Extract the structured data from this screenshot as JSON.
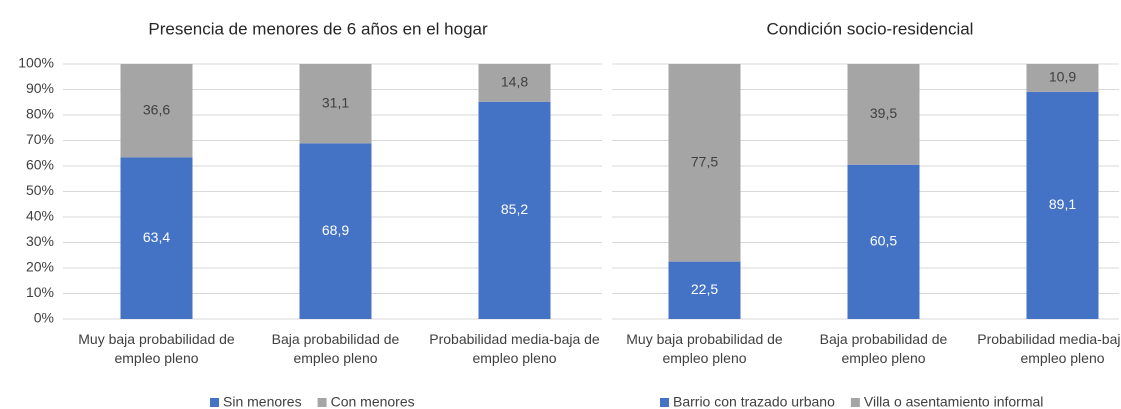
{
  "chart_data": [
    {
      "type": "stacked_bar",
      "title": "Presencia de menores de 6 años en el hogar",
      "categories": [
        "Muy baja probabilidad de empleo pleno",
        "Baja probabilidad de empleo pleno",
        "Probabilidad media-baja de empleo pleno"
      ],
      "series": [
        {
          "name": "Sin menores",
          "color": "#4472c4",
          "values": [
            63.4,
            68.9,
            85.2
          ],
          "value_labels": [
            "63,4",
            "68,9",
            "85,2"
          ]
        },
        {
          "name": "Con menores",
          "color": "#a5a5a5",
          "values": [
            36.6,
            31.1,
            14.8
          ],
          "value_labels": [
            "36,6",
            "31,1",
            "14,8"
          ]
        }
      ],
      "ylim": [
        0,
        100
      ],
      "yticks": [
        {
          "value": 0,
          "label": "0%"
        },
        {
          "value": 10,
          "label": "10%"
        },
        {
          "value": 20,
          "label": "20%"
        },
        {
          "value": 30,
          "label": "30%"
        },
        {
          "value": 40,
          "label": "40%"
        },
        {
          "value": 50,
          "label": "50%"
        },
        {
          "value": 60,
          "label": "60%"
        },
        {
          "value": 70,
          "label": "70%"
        },
        {
          "value": 80,
          "label": "80%"
        },
        {
          "value": 90,
          "label": "90%"
        },
        {
          "value": 100,
          "label": "100%"
        }
      ],
      "grid": true,
      "legend": "bottom"
    },
    {
      "type": "stacked_bar",
      "title": "Condición socio-residencial",
      "categories": [
        "Muy baja probabilidad de empleo pleno",
        "Baja probabilidad de empleo pleno",
        "Probabilidad media-baja de empleo pleno"
      ],
      "series": [
        {
          "name": "Barrio con trazado urbano",
          "color": "#4472c4",
          "values": [
            22.5,
            60.5,
            89.1
          ],
          "value_labels": [
            "22,5",
            "60,5",
            "89,1"
          ]
        },
        {
          "name": "Villa o asentamiento informal",
          "color": "#a5a5a5",
          "values": [
            77.5,
            39.5,
            10.9
          ],
          "value_labels": [
            "77,5",
            "39,5",
            "10,9"
          ]
        }
      ],
      "ylim": [
        0,
        100
      ],
      "yticks": [
        0,
        10,
        20,
        30,
        40,
        50,
        60,
        70,
        80,
        90,
        100
      ],
      "grid": true,
      "legend": "bottom"
    }
  ]
}
